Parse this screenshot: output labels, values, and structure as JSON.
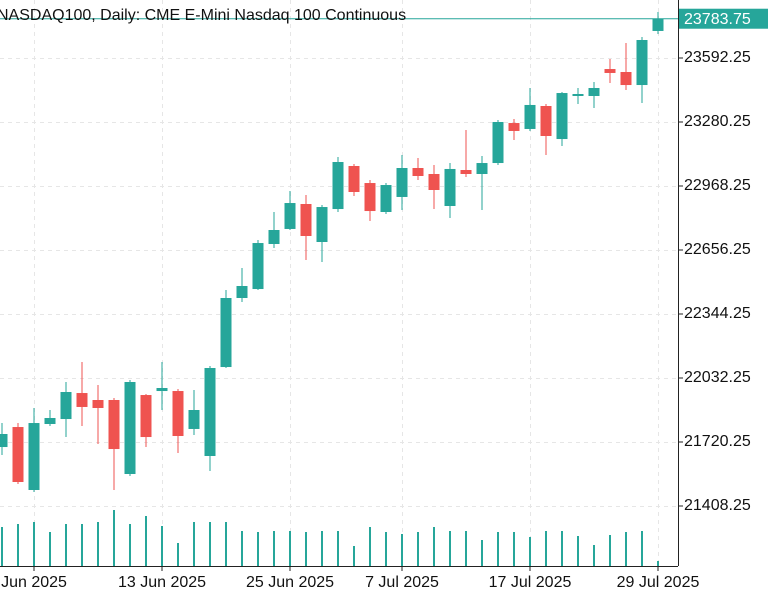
{
  "chart_data": {
    "type": "candlestick",
    "title": "NASDAQ100, Daily:  CME E-Mini Nasdaq 100 Continuous",
    "categories": [
      null,
      null,
      "Jun 2025",
      null,
      null,
      null,
      null,
      null,
      null,
      null,
      "13 Jun 2025",
      null,
      null,
      null,
      null,
      null,
      null,
      null,
      "25 Jun 2025",
      null,
      null,
      null,
      null,
      null,
      null,
      "7 Jul 2025",
      null,
      null,
      null,
      null,
      null,
      null,
      null,
      "17 Jul 2025",
      null,
      null,
      null,
      null,
      null,
      null,
      null,
      "29 Jul 2025"
    ],
    "open": [
      21695.75,
      21793.25,
      21486.25,
      21808,
      21832.25,
      21959,
      21925,
      21925,
      21564.25,
      21949.25,
      21968.75,
      21968.75,
      21783.75,
      21652,
      22085.75,
      22422.25,
      22466,
      22685.5,
      22758.75,
      22880.5,
      22695.25,
      22856,
      23065.75,
      22982.75,
      22841.5,
      22914.75,
      23056,
      23026.75,
      22870.75,
      23046.25,
      23026.75,
      23080.25,
      23275.25,
      23246.25,
      23358.25,
      23197.25,
      23407,
      23407,
      23538.5,
      23524,
      23460.5,
      23724
    ],
    "high": [
      21812.75,
      21812.75,
      21886,
      21876.25,
      22012.75,
      22110.25,
      21998,
      21934.75,
      22022.5,
      21954.25,
      22110.25,
      21978.75,
      21973.75,
      22090.75,
      22461.25,
      22568.5,
      22705,
      22841.5,
      22943.75,
      22924.25,
      22875.75,
      23109.75,
      23075.5,
      22997.5,
      22982.75,
      23119.25,
      23104.75,
      23070.75,
      23080.25,
      23241.25,
      23114.5,
      23290,
      23294.75,
      23446,
      23368,
      23426.5,
      23446,
      23475.25,
      23587.25,
      23665.5,
      23694.75,
      23816.5
    ],
    "low": [
      21656.75,
      21515.5,
      21476.5,
      21798.25,
      21744.5,
      21798.25,
      21710.5,
      21486.25,
      21554.5,
      21695.75,
      21876.25,
      21666.75,
      21754.25,
      21578.75,
      22081,
      22402.75,
      22461.25,
      22666,
      22753.75,
      22607.5,
      22597.75,
      22841.5,
      22919.5,
      22797.5,
      22831.75,
      22851.25,
      22997.5,
      22856,
      22812.25,
      23012.25,
      22851.25,
      23070.75,
      23192.5,
      23236.5,
      23119.25,
      23163.25,
      23368,
      23348.5,
      23470.25,
      23436.25,
      23372.75,
      23709.25
    ],
    "close": [
      21759.25,
      21525.25,
      21812.75,
      21837.25,
      21964,
      21891,
      21886,
      21686,
      22012.75,
      21744.5,
      21983.5,
      21749.5,
      21876.25,
      22081,
      22422.25,
      22480.75,
      22690.25,
      22753.75,
      22885.25,
      22724.5,
      22865.75,
      23085.25,
      22939,
      22846.25,
      22973,
      23056,
      23017,
      22948.75,
      23051.25,
      23026.75,
      23080.25,
      23280.25,
      23236.5,
      23363.25,
      23212,
      23421.5,
      23416.75,
      23446,
      23519.25,
      23460.5,
      23680,
      23783.75
    ],
    "volume": [
      39,
      42,
      44,
      34,
      42,
      42,
      44,
      56,
      42,
      50,
      40,
      23,
      44,
      44,
      44,
      35,
      34,
      35,
      35,
      34,
      35,
      35,
      20,
      39,
      34,
      32,
      34,
      39,
      35,
      35,
      26,
      34,
      34,
      29,
      35,
      35,
      30,
      21,
      31,
      34,
      35,
      5
    ],
    "up_color": "#26a69a",
    "down_color": "#ef5350",
    "ylim": [
      21115.75,
      23875
    ],
    "yticks": [
      21408.25,
      21720.25,
      22032.25,
      22344.25,
      22656.25,
      22968.25,
      23280.25,
      23592.25
    ],
    "grid": true
  }
}
